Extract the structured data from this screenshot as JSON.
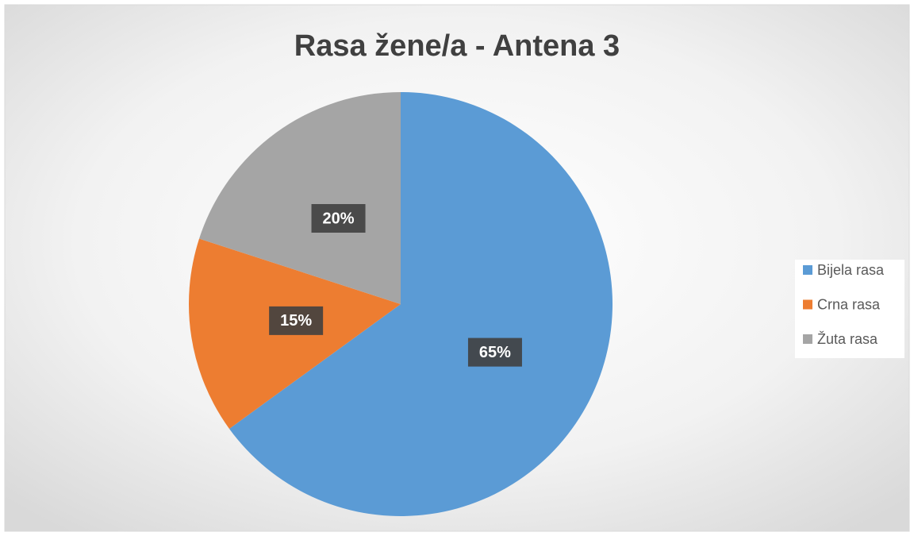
{
  "chart_data": {
    "type": "pie",
    "title": "Rasa žene/a - Antena 3",
    "categories": [
      "Bijela rasa",
      "Crna rasa",
      "Žuta rasa"
    ],
    "values": [
      65,
      15,
      20
    ],
    "value_labels": [
      "65%",
      "15%",
      "20%"
    ],
    "colors": [
      "#5b9bd5",
      "#ed7d31",
      "#a5a5a5"
    ],
    "legend": "right"
  }
}
